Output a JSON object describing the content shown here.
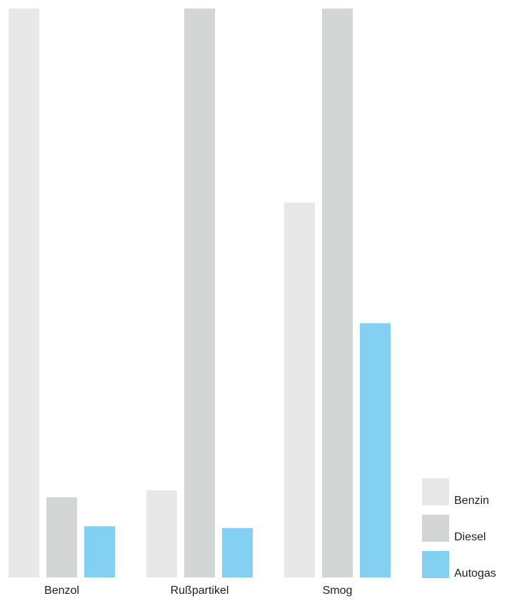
{
  "chart_data": {
    "type": "bar",
    "title": "",
    "xlabel": "",
    "ylabel": "",
    "categories": [
      "Benzol",
      "Rußpartikel",
      "Smog"
    ],
    "series": [
      {
        "name": "Benzin",
        "color": "#e8e8e8",
        "values": [
          100,
          15.3,
          65.9
        ]
      },
      {
        "name": "Diesel",
        "color": "#d4d5d5",
        "values": [
          14.1,
          100,
          100
        ]
      },
      {
        "name": "Autogas",
        "color": "#84d0f3",
        "values": [
          9.0,
          8.7,
          44.7
        ]
      }
    ],
    "ylim": [
      0,
      100
    ],
    "grid": false,
    "legend": "bottom-right"
  }
}
